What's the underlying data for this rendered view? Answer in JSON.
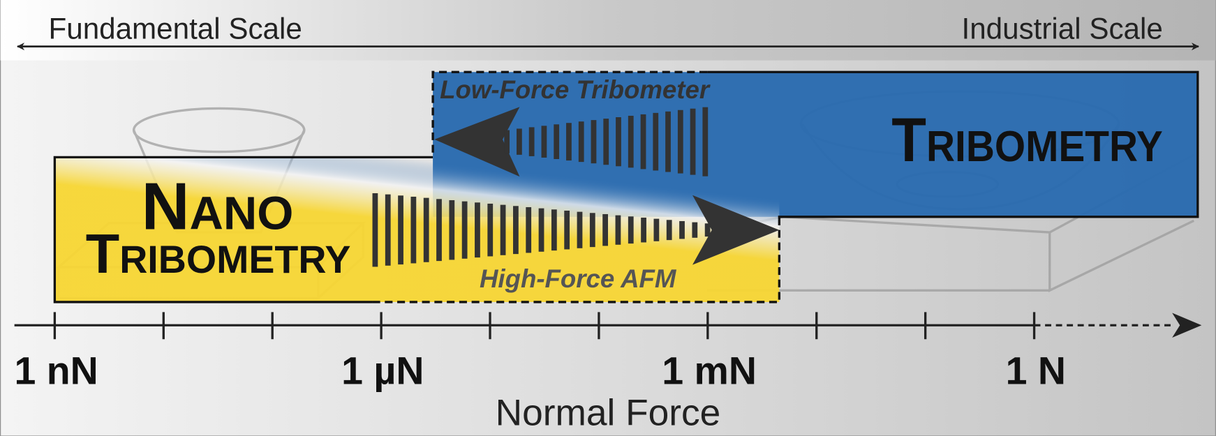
{
  "header": {
    "left": "Fundamental Scale",
    "right": "Industrial Scale"
  },
  "regions": {
    "nano": {
      "line1": "Nano",
      "line2": "Tribometry"
    },
    "tribometry": {
      "title": "Tribometry"
    }
  },
  "arrows": {
    "low_force": "Low-Force Tribometer",
    "high_force": "High-Force AFM"
  },
  "axis": {
    "labels": [
      "1 nN",
      "1 µN",
      "1 mN",
      "1 N"
    ],
    "title": "Normal Force"
  }
}
